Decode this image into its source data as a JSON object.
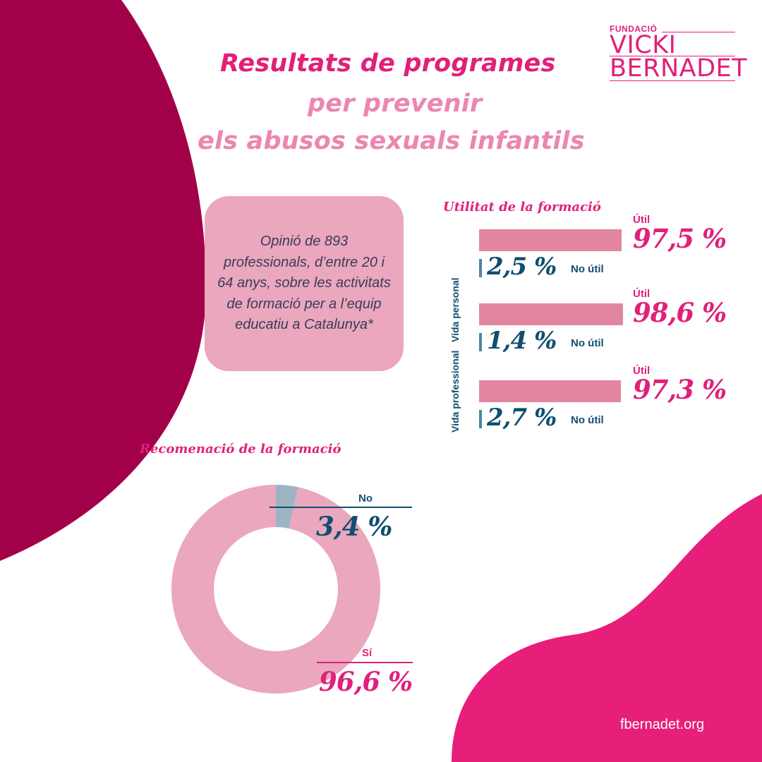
{
  "title": {
    "line1": "Resultats de programes",
    "line2": "per prevenir",
    "line3": "els abusos sexuals infantils"
  },
  "logo": {
    "top": "FUNDACIÓ",
    "line1": "VICKI",
    "line2": "BERNADET"
  },
  "info_box": {
    "text": "Opinió de 893 professionals, d’entre 20 i 64 anys, sobre les activitats de formació per a l’equip educatiu a Catalunya*"
  },
  "colors": {
    "magenta": "#E0207A",
    "dark_magenta": "#A3004A",
    "pink_bar": "#E2869F",
    "light_pink": "#EAA7BD",
    "teal": "#0F4F6F",
    "grey_blue": "#9DB4C2"
  },
  "chart_data": [
    {
      "type": "bar",
      "title": "Utilitat de la formació",
      "unit": "%",
      "categories": [
        "",
        "Vida personal",
        "Vida professional"
      ],
      "series": [
        {
          "name": "Útil",
          "values": [
            97.5,
            98.6,
            97.3
          ],
          "labels": [
            "97,5 %",
            "98,6 %",
            "97,3 %"
          ]
        },
        {
          "name": "No útil",
          "values": [
            2.5,
            1.4,
            2.7
          ],
          "labels": [
            "2,5 %",
            "1,4 %",
            "2,7 %"
          ]
        }
      ]
    },
    {
      "type": "pie",
      "title": "Recomenació de la formació",
      "unit": "%",
      "slices": [
        {
          "label": "No",
          "value": 3.4,
          "display": "3,4 %"
        },
        {
          "label": "Sí",
          "value": 96.6,
          "display": "96,6 %"
        }
      ]
    }
  ],
  "footer": {
    "website": "fbernadet.org"
  }
}
